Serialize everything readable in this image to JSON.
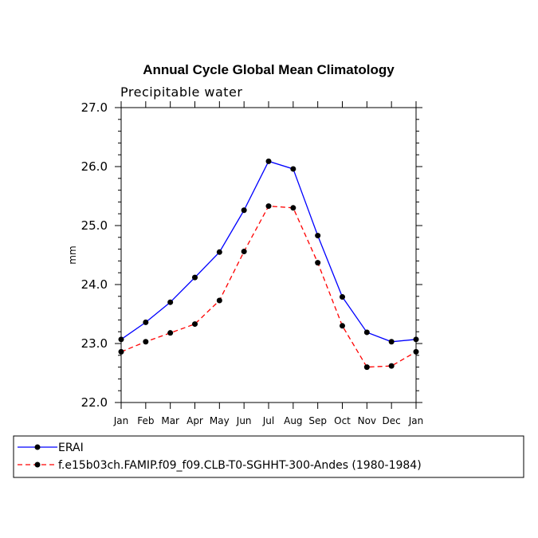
{
  "chart_data": {
    "type": "line",
    "title": "Annual Cycle Global Mean Climatology",
    "subtitle": "Precipitable water",
    "xlabel": "",
    "ylabel": "mm",
    "ylim": [
      22.0,
      27.0
    ],
    "yticks": [
      "22.0",
      "23.0",
      "24.0",
      "25.0",
      "26.0",
      "27.0"
    ],
    "categories": [
      "Jan",
      "Feb",
      "Mar",
      "Apr",
      "May",
      "Jun",
      "Jul",
      "Aug",
      "Sep",
      "Oct",
      "Nov",
      "Dec",
      "Jan"
    ],
    "series": [
      {
        "name": "ERAI",
        "color": "#0000ff",
        "dash": "solid",
        "values": [
          23.07,
          23.36,
          23.7,
          24.12,
          24.55,
          25.26,
          26.09,
          25.96,
          24.83,
          23.79,
          23.19,
          23.03,
          23.07
        ]
      },
      {
        "name": "f.e15b03ch.FAMIP.f09_f09.CLB-T0-SGHHT-300-Andes (1980-1984)",
        "color": "#ff0000",
        "dash": "dashed",
        "values": [
          22.86,
          23.03,
          23.18,
          23.33,
          23.73,
          24.56,
          25.33,
          25.3,
          24.37,
          23.3,
          22.6,
          22.62,
          22.86
        ]
      }
    ],
    "grid": false,
    "legend": "bottom-left"
  }
}
